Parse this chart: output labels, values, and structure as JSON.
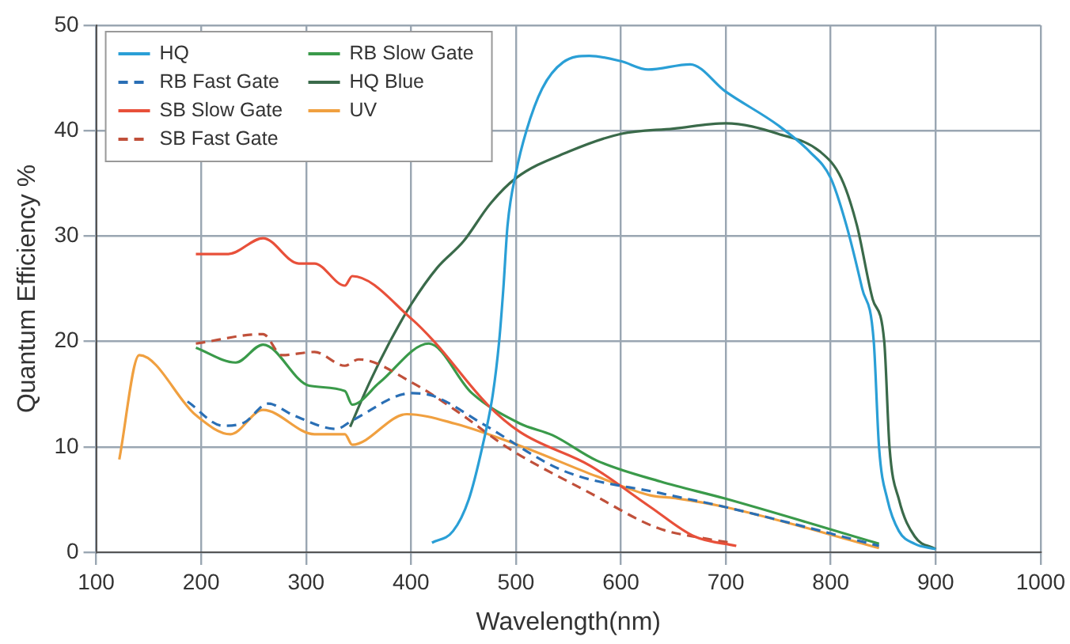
{
  "chart_data": {
    "type": "line",
    "xlabel": "Wavelength(nm)",
    "ylabel": "Quantum Efficiency %",
    "xlim": [
      100,
      1000
    ],
    "xticks": [
      100,
      200,
      300,
      400,
      500,
      600,
      700,
      800,
      900,
      1000
    ],
    "ylim": [
      0,
      50
    ],
    "yticks": [
      0,
      10,
      20,
      30,
      40,
      50
    ],
    "grid": true,
    "legend": "top left",
    "marker": "none",
    "line_style": "solid",
    "series": [
      {
        "name": "HQ",
        "color": "#2a9fd6",
        "x": [
          420,
          440,
          455,
          468,
          478,
          484,
          488,
          492,
          500,
          510,
          525,
          545,
          570,
          600,
          626,
          666,
          700,
          750,
          780,
          800,
          815,
          830,
          841,
          846,
          854,
          865,
          880,
          900
        ],
        "values": [
          0.9,
          2,
          5,
          10,
          15,
          20,
          25,
          31,
          36,
          40,
          44,
          46.5,
          47.1,
          46.6,
          45.8,
          46.3,
          43.7,
          40.5,
          38,
          35.5,
          31,
          25,
          20,
          10,
          5,
          2,
          0.8,
          0.3
        ]
      },
      {
        "name": "RB Fast Gate",
        "color": "#2a6fb5",
        "line_style": "dashed",
        "x": [
          187,
          221,
          241,
          264,
          288,
          329,
          344,
          401,
          422,
          468,
          546,
          638,
          699,
          846
        ],
        "values": [
          14.3,
          12,
          12.3,
          14.1,
          13,
          11.7,
          12.5,
          15.1,
          14.8,
          12.2,
          7.7,
          5.6,
          4.3,
          0.6
        ]
      },
      {
        "name": "SB Slow Gate",
        "color": "#e8503a",
        "x": [
          195,
          226,
          259,
          293,
          308,
          337,
          344,
          401,
          422,
          473,
          504,
          571,
          628,
          670,
          710
        ],
        "values": [
          28.3,
          28.3,
          29.8,
          27.4,
          27.4,
          25.3,
          26.2,
          22.1,
          20,
          14,
          11.4,
          8.2,
          4.3,
          1.5,
          0.6
        ]
      },
      {
        "name": "SB Fast Gate",
        "color": "#c0503a",
        "line_style": "dashed",
        "x": [
          195,
          259,
          277,
          308,
          337,
          350,
          401,
          442,
          494,
          571,
          635,
          680,
          705
        ],
        "values": [
          19.8,
          20.7,
          18.7,
          19,
          17.7,
          18.3,
          16.1,
          13.5,
          9.8,
          5.6,
          2.3,
          1.3,
          0.9
        ]
      },
      {
        "name": "RB Slow Gate",
        "color": "#3a9a4a",
        "x": [
          195,
          233,
          259,
          303,
          337,
          344,
          370,
          417,
          458,
          504,
          535,
          577,
          638,
          699,
          846
        ],
        "values": [
          19.4,
          18,
          19.7,
          15.8,
          15.3,
          14,
          16.1,
          19.8,
          15.1,
          12.2,
          11.1,
          8.7,
          6.7,
          5.1,
          0.8
        ]
      },
      {
        "name": "HQ Blue",
        "color": "#3a6a4a",
        "x": [
          342,
          360,
          380,
          400,
          425,
          450,
          475,
          500,
          550,
          600,
          650,
          700,
          750,
          790,
          810,
          825,
          840,
          851,
          856,
          865,
          880,
          900
        ],
        "values": [
          11.9,
          16,
          20,
          23.5,
          27,
          29.5,
          33,
          35.5,
          38,
          39.7,
          40.2,
          40.7,
          39.7,
          38,
          35.5,
          31,
          24,
          20,
          10,
          5,
          1.5,
          0.3
        ]
      },
      {
        "name": "UV",
        "color": "#f0a040",
        "x": [
          122,
          141,
          195,
          228,
          259,
          308,
          337,
          344,
          396,
          442,
          504,
          577,
          628,
          654,
          699,
          846
        ],
        "values": [
          8.8,
          18.7,
          13,
          11.2,
          13.5,
          11.2,
          11.2,
          10.2,
          13.1,
          12.2,
          10.1,
          7.2,
          5.4,
          5.1,
          4.3,
          0.4
        ]
      }
    ]
  }
}
